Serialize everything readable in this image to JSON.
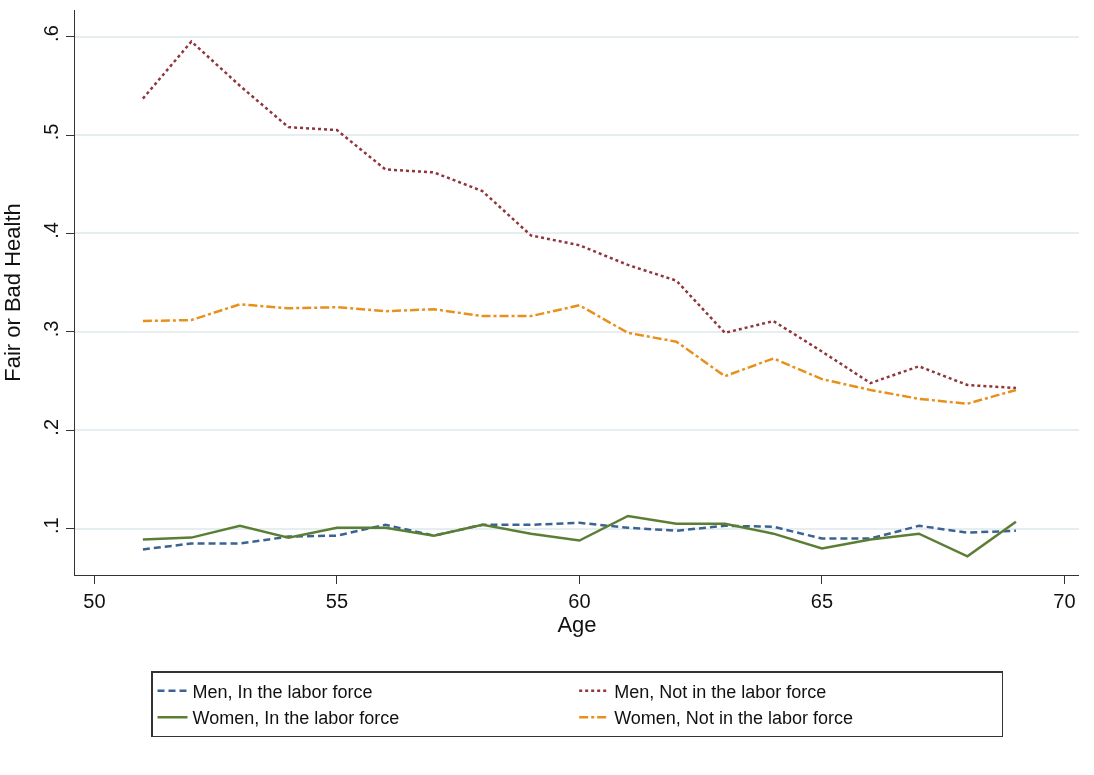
{
  "chart_data": {
    "type": "line",
    "xlabel": "Age",
    "ylabel": "Fair or Bad Health",
    "x": [
      51,
      52,
      53,
      54,
      55,
      56,
      57,
      58,
      59,
      60,
      61,
      62,
      63,
      64,
      65,
      66,
      67,
      68,
      69
    ],
    "series": [
      {
        "name": "Men, In the labor force",
        "color": "#3c6390",
        "line_style": "dashed",
        "values": [
          0.079,
          0.085,
          0.085,
          0.092,
          0.093,
          0.104,
          0.093,
          0.104,
          0.104,
          0.106,
          0.101,
          0.098,
          0.103,
          0.102,
          0.09,
          0.09,
          0.103,
          0.096,
          0.098
        ]
      },
      {
        "name": "Men, Not in the labor force",
        "color": "#90353b",
        "line_style": "dotted",
        "values": [
          0.537,
          0.595,
          0.55,
          0.508,
          0.505,
          0.465,
          0.462,
          0.443,
          0.398,
          0.388,
          0.368,
          0.352,
          0.299,
          0.311,
          0.28,
          0.248,
          0.265,
          0.246,
          0.243
        ]
      },
      {
        "name": "Women, In the labor force",
        "color": "#5b7e35",
        "line_style": "solid",
        "values": [
          0.089,
          0.091,
          0.103,
          0.091,
          0.101,
          0.101,
          0.093,
          0.104,
          0.095,
          0.088,
          0.113,
          0.105,
          0.105,
          0.095,
          0.08,
          0.089,
          0.095,
          0.072,
          0.107
        ]
      },
      {
        "name": "Women, Not in the labor force",
        "color": "#e8901c",
        "line_style": "dashdot",
        "values": [
          0.311,
          0.312,
          0.328,
          0.324,
          0.325,
          0.321,
          0.323,
          0.316,
          0.316,
          0.327,
          0.299,
          0.29,
          0.255,
          0.273,
          0.252,
          0.241,
          0.232,
          0.227,
          0.241
        ]
      }
    ],
    "xlim": [
      49.6,
      70.3
    ],
    "xticks": [
      50,
      55,
      60,
      65,
      70
    ],
    "ylim": [
      0.053,
      0.627
    ],
    "yticks": [
      {
        "value": 0.1,
        "label": ".1"
      },
      {
        "value": 0.2,
        "label": ".2"
      },
      {
        "value": 0.3,
        "label": ".3"
      },
      {
        "value": 0.4,
        "label": ".4"
      },
      {
        "value": 0.5,
        "label": ".5"
      },
      {
        "value": 0.6,
        "label": ".6"
      }
    ],
    "grid": "y",
    "legend": "bottom",
    "marker": "none"
  }
}
